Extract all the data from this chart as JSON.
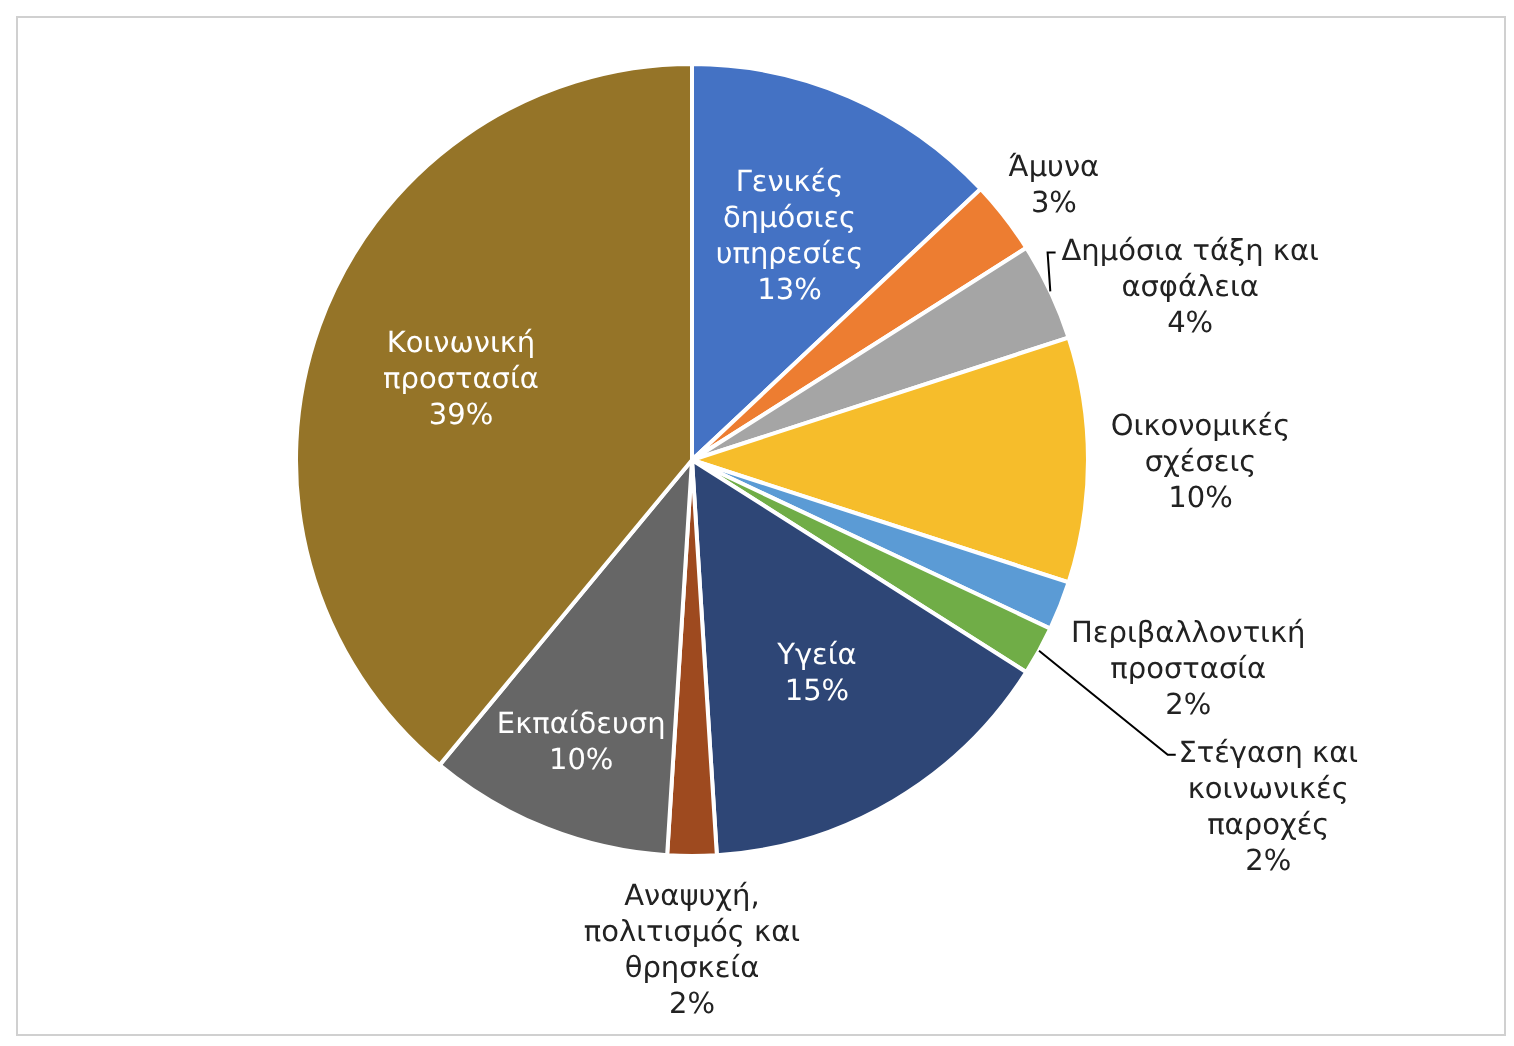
{
  "chart_data": {
    "type": "pie",
    "categories": [
      "Γενικές δημόσιες υπηρεσίες",
      "Άμυνα",
      "Δημόσια τάξη και ασφάλεια",
      "Οικονομικές σχέσεις",
      "Περιβαλλοντική προστασία",
      "Στέγαση και κοινωνικές παροχές",
      "Υγεία",
      "Αναψυχή, πολιτισμός και θρησκεία",
      "Εκπαίδευση",
      "Κοινωνική προστασία"
    ],
    "values": [
      13,
      3,
      4,
      10,
      2,
      2,
      15,
      2,
      10,
      39
    ],
    "value_labels": [
      "13%",
      "3%",
      "4%",
      "10%",
      "2%",
      "2%",
      "15%",
      "2%",
      "10%",
      "39%"
    ],
    "colors": [
      "#4472c4",
      "#ed7d31",
      "#a5a5a5",
      "#f6bd2b",
      "#5b9bd5",
      "#70ad47",
      "#2e4676",
      "#9e4a1f",
      "#666666",
      "#957428"
    ]
  }
}
